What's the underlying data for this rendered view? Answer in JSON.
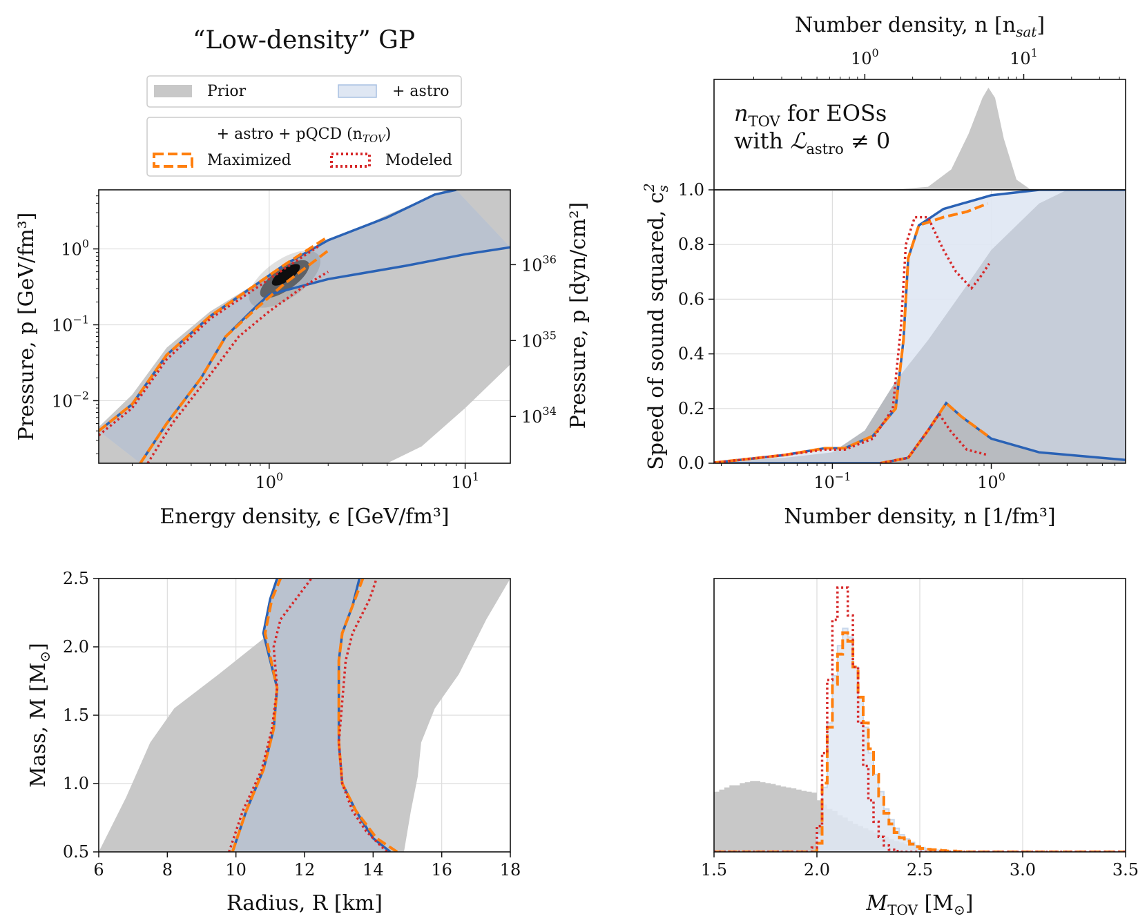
{
  "figure": {
    "title": "“Low-density” GP",
    "legend": {
      "prior": "Prior",
      "astro": "+ astro",
      "pqcd_header": "+ astro + pQCD (n",
      "pqcd_sub": "TOV",
      "pqcd_close": ")",
      "maximized": "Maximized",
      "modeled": "Modeled"
    },
    "inset_text": {
      "line1_main": "n",
      "line1_sub": "TOV",
      "line1_rest": " for EOSs",
      "line2_pre": "with ",
      "line2_main": "ℒ",
      "line2_sub": "astro",
      "line2_rest": " ≠ 0"
    }
  },
  "colors": {
    "prior": "#c8c8c8",
    "astro_fill": "#dfe7f3",
    "overlap": "#b5bec9",
    "astro_line": "#2a62b5",
    "maximized": "#ff7f0e",
    "modeled": "#d62728"
  },
  "chart_data": [
    {
      "id": "eos",
      "type": "area",
      "xlabel": "Energy density, ϵ [GeV/fm³]",
      "ylabel": "Pressure, p [GeV/fm³]",
      "ylabel_right": "Pressure, p [dyn/cm²]",
      "x_scale": "log",
      "y_scale": "log",
      "xlim": [
        0.135,
        17
      ],
      "ylim": [
        0.0015,
        6
      ],
      "x_ticks": [
        {
          "v": 1,
          "b": "10",
          "e": "0"
        },
        {
          "v": 10,
          "b": "10",
          "e": "1"
        }
      ],
      "y_ticks": [
        {
          "v": 0.01,
          "b": "10",
          "e": "−2"
        },
        {
          "v": 0.1,
          "b": "10",
          "e": "−1"
        },
        {
          "v": 1,
          "b": "10",
          "e": "0"
        }
      ],
      "y2_ticks": [
        {
          "v": 0.0062,
          "b": "10",
          "e": "34"
        },
        {
          "v": 0.062,
          "b": "10",
          "e": "35"
        },
        {
          "v": 0.62,
          "b": "10",
          "e": "36"
        },
        {
          "v": 6.2,
          "b": "10",
          "e": "37"
        }
      ],
      "prior_upper": [
        [
          0.135,
          0.0045
        ],
        [
          0.2,
          0.012
        ],
        [
          0.3,
          0.05
        ],
        [
          0.5,
          0.15
        ],
        [
          1,
          0.45
        ],
        [
          2,
          1.2
        ],
        [
          4,
          2.8
        ],
        [
          8,
          6
        ],
        [
          17,
          12
        ]
      ],
      "prior_lower": [
        [
          0.135,
          0.0015
        ],
        [
          4,
          0.0015
        ],
        [
          6,
          0.0025
        ],
        [
          10,
          0.008
        ],
        [
          17,
          0.03
        ]
      ],
      "astro_upper": [
        [
          0.135,
          0.004
        ],
        [
          0.2,
          0.009
        ],
        [
          0.3,
          0.04
        ],
        [
          0.5,
          0.13
        ],
        [
          0.8,
          0.3
        ],
        [
          1.2,
          0.62
        ],
        [
          2,
          1.3
        ],
        [
          4,
          2.6
        ],
        [
          7,
          5.2
        ],
        [
          9,
          6
        ]
      ],
      "astro_lower": [
        [
          0.22,
          0.0015
        ],
        [
          0.3,
          0.005
        ],
        [
          0.45,
          0.02
        ],
        [
          0.6,
          0.07
        ],
        [
          0.85,
          0.17
        ],
        [
          1,
          0.25
        ],
        [
          2,
          0.4
        ],
        [
          5,
          0.6
        ],
        [
          10,
          0.85
        ],
        [
          17,
          1.05
        ]
      ],
      "max_upper": [
        [
          0.135,
          0.004
        ],
        [
          0.2,
          0.009
        ],
        [
          0.3,
          0.04
        ],
        [
          0.5,
          0.13
        ],
        [
          0.8,
          0.3
        ],
        [
          1.2,
          0.62
        ],
        [
          2,
          1.45
        ]
      ],
      "max_lower": [
        [
          0.22,
          0.0015
        ],
        [
          0.3,
          0.005
        ],
        [
          0.45,
          0.02
        ],
        [
          0.6,
          0.07
        ],
        [
          0.85,
          0.16
        ],
        [
          1.2,
          0.35
        ],
        [
          2,
          0.95
        ]
      ],
      "mod_upper": [
        [
          0.135,
          0.0035
        ],
        [
          0.2,
          0.008
        ],
        [
          0.3,
          0.035
        ],
        [
          0.5,
          0.12
        ],
        [
          0.8,
          0.27
        ],
        [
          1.2,
          0.55
        ],
        [
          1.8,
          1.1
        ]
      ],
      "mod_lower": [
        [
          0.24,
          0.0015
        ],
        [
          0.32,
          0.005
        ],
        [
          0.5,
          0.022
        ],
        [
          0.7,
          0.07
        ],
        [
          1,
          0.15
        ],
        [
          1.5,
          0.32
        ],
        [
          2,
          0.5
        ]
      ],
      "cloud_center": [
        1.2,
        0.4
      ]
    },
    {
      "id": "cs2",
      "type": "area",
      "xlabel": "Number density, n [1/fm³]",
      "ylabel": "Speed of sound squared, c",
      "ylabel_sub": "s",
      "ylabel_sup": "2",
      "top_xlabel": "Number density, n [n",
      "top_xlabel_sub": "sat",
      "top_xlabel_close": "]",
      "x_scale": "log",
      "xlim": [
        0.018,
        7
      ],
      "ylim": [
        0,
        1
      ],
      "x_ticks": [
        {
          "v": 0.1,
          "b": "10",
          "e": "−1"
        },
        {
          "v": 1,
          "b": "10",
          "e": "0"
        }
      ],
      "y_ticks": [
        0.0,
        0.2,
        0.4,
        0.6,
        0.8,
        1.0
      ],
      "top_ticks": [
        {
          "v": 0.16,
          "b": "10",
          "e": "0"
        },
        {
          "v": 1.6,
          "b": "10",
          "e": "1"
        }
      ],
      "prior_upper": [
        [
          0.018,
          0.005
        ],
        [
          0.05,
          0.02
        ],
        [
          0.1,
          0.04
        ],
        [
          0.16,
          0.12
        ],
        [
          0.25,
          0.3
        ],
        [
          0.4,
          0.45
        ],
        [
          0.7,
          0.65
        ],
        [
          1,
          0.78
        ],
        [
          2,
          0.95
        ],
        [
          3,
          1
        ],
        [
          7,
          1
        ]
      ],
      "astro_upper": [
        [
          0.018,
          0.002
        ],
        [
          0.05,
          0.03
        ],
        [
          0.09,
          0.055
        ],
        [
          0.12,
          0.055
        ],
        [
          0.18,
          0.1
        ],
        [
          0.25,
          0.2
        ],
        [
          0.28,
          0.45
        ],
        [
          0.3,
          0.75
        ],
        [
          0.35,
          0.87
        ],
        [
          0.5,
          0.93
        ],
        [
          1,
          0.98
        ],
        [
          2,
          1
        ],
        [
          7,
          1
        ]
      ],
      "astro_lower": [
        [
          0.018,
          0
        ],
        [
          0.2,
          0
        ],
        [
          0.3,
          0.02
        ],
        [
          0.4,
          0.12
        ],
        [
          0.52,
          0.22
        ],
        [
          0.65,
          0.17
        ],
        [
          1,
          0.09
        ],
        [
          2,
          0.04
        ],
        [
          7,
          0.012
        ]
      ],
      "max_upper": [
        [
          0.018,
          0.002
        ],
        [
          0.05,
          0.03
        ],
        [
          0.09,
          0.055
        ],
        [
          0.12,
          0.055
        ],
        [
          0.18,
          0.1
        ],
        [
          0.25,
          0.2
        ],
        [
          0.28,
          0.45
        ],
        [
          0.3,
          0.75
        ],
        [
          0.35,
          0.87
        ],
        [
          0.5,
          0.9
        ],
        [
          0.7,
          0.92
        ],
        [
          0.95,
          0.95
        ]
      ],
      "max_lower": [
        [
          0.2,
          0
        ],
        [
          0.3,
          0.02
        ],
        [
          0.4,
          0.12
        ],
        [
          0.52,
          0.22
        ],
        [
          0.65,
          0.17
        ],
        [
          0.95,
          0.1
        ]
      ],
      "mod_upper": [
        [
          0.018,
          0.002
        ],
        [
          0.05,
          0.03
        ],
        [
          0.09,
          0.05
        ],
        [
          0.12,
          0.05
        ],
        [
          0.18,
          0.09
        ],
        [
          0.24,
          0.2
        ],
        [
          0.27,
          0.5
        ],
        [
          0.29,
          0.8
        ],
        [
          0.33,
          0.9
        ],
        [
          0.4,
          0.9
        ],
        [
          0.5,
          0.78
        ],
        [
          0.6,
          0.7
        ],
        [
          0.75,
          0.64
        ],
        [
          0.85,
          0.68
        ],
        [
          0.97,
          0.73
        ]
      ],
      "mod_lower": [
        [
          0.2,
          0
        ],
        [
          0.3,
          0.02
        ],
        [
          0.4,
          0.12
        ],
        [
          0.47,
          0.18
        ],
        [
          0.55,
          0.12
        ],
        [
          0.7,
          0.05
        ],
        [
          0.95,
          0.03
        ]
      ],
      "inset_hist": [
        [
          0.5,
          0
        ],
        [
          1.5,
          0.002
        ],
        [
          2.5,
          0.03
        ],
        [
          3.5,
          0.2
        ],
        [
          4.5,
          0.55
        ],
        [
          5.5,
          0.9
        ],
        [
          6,
          1
        ],
        [
          6.6,
          0.9
        ],
        [
          7.5,
          0.5
        ],
        [
          9,
          0.1
        ],
        [
          11,
          0.005
        ],
        [
          13,
          0
        ]
      ]
    },
    {
      "id": "mr",
      "type": "area",
      "xlabel": "Radius, R [km]",
      "ylabel": "Mass, M [M",
      "ylabel_sub": "⊙",
      "ylabel_close": "]",
      "xlim": [
        6,
        18
      ],
      "ylim": [
        0.5,
        2.5
      ],
      "x_ticks": [
        6,
        8,
        10,
        12,
        14,
        16,
        18
      ],
      "y_ticks": [
        0.5,
        1.0,
        1.5,
        2.0,
        2.5
      ],
      "prior_left": [
        [
          6,
          0.5
        ],
        [
          6.8,
          0.9
        ],
        [
          7.5,
          1.3
        ],
        [
          8.2,
          1.55
        ],
        [
          9.5,
          1.8
        ],
        [
          11,
          2.1
        ],
        [
          12.5,
          2.5
        ]
      ],
      "prior_right": [
        [
          14.9,
          0.5
        ],
        [
          15.1,
          0.8
        ],
        [
          15.3,
          1.05
        ],
        [
          15.4,
          1.3
        ],
        [
          15.8,
          1.55
        ],
        [
          16.5,
          1.8
        ],
        [
          17.3,
          2.2
        ],
        [
          18,
          2.5
        ]
      ],
      "astro_left": [
        [
          9.9,
          0.5
        ],
        [
          10.3,
          0.8
        ],
        [
          10.8,
          1.1
        ],
        [
          11.1,
          1.4
        ],
        [
          11.2,
          1.7
        ],
        [
          10.8,
          2.1
        ],
        [
          11,
          2.35
        ],
        [
          11.2,
          2.5
        ]
      ],
      "astro_right": [
        [
          14.5,
          0.5
        ],
        [
          14,
          0.6
        ],
        [
          13.5,
          0.8
        ],
        [
          13.1,
          1.0
        ],
        [
          13.0,
          1.3
        ],
        [
          13.0,
          1.6
        ],
        [
          13.0,
          1.9
        ],
        [
          13.1,
          2.1
        ],
        [
          13.4,
          2.3
        ],
        [
          13.6,
          2.5
        ]
      ],
      "max_left": [
        [
          9.9,
          0.5
        ],
        [
          10.3,
          0.8
        ],
        [
          10.8,
          1.1
        ],
        [
          11.1,
          1.4
        ],
        [
          11.2,
          1.7
        ],
        [
          10.85,
          2.1
        ],
        [
          11.05,
          2.35
        ],
        [
          11.3,
          2.5
        ]
      ],
      "max_right": [
        [
          14.7,
          0.5
        ],
        [
          14.1,
          0.6
        ],
        [
          13.5,
          0.8
        ],
        [
          13.1,
          1.0
        ],
        [
          13.0,
          1.3
        ],
        [
          13.0,
          1.6
        ],
        [
          13.0,
          1.9
        ],
        [
          13.1,
          2.1
        ],
        [
          13.4,
          2.3
        ],
        [
          13.7,
          2.5
        ]
      ],
      "mod_left": [
        [
          9.8,
          0.5
        ],
        [
          10.2,
          0.8
        ],
        [
          10.75,
          1.1
        ],
        [
          11.05,
          1.4
        ],
        [
          11.2,
          1.7
        ],
        [
          11.1,
          2.0
        ],
        [
          11.3,
          2.2
        ],
        [
          11.9,
          2.4
        ],
        [
          12.2,
          2.5
        ]
      ],
      "mod_right": [
        [
          14.4,
          0.5
        ],
        [
          13.8,
          0.65
        ],
        [
          13.4,
          0.8
        ],
        [
          13.1,
          1.0
        ],
        [
          13.0,
          1.3
        ],
        [
          13.1,
          1.6
        ],
        [
          13.2,
          1.9
        ],
        [
          13.4,
          2.1
        ],
        [
          13.9,
          2.35
        ],
        [
          14.1,
          2.5
        ]
      ]
    },
    {
      "id": "mtov",
      "type": "bar",
      "xlabel": "M",
      "xlabel_sub": "TOV",
      "xlabel_close": " [M",
      "xlabel_sub2": "⊙",
      "xlabel_close2": "]",
      "xlim": [
        1.5,
        3.5
      ],
      "x_ticks": [
        1.5,
        2.0,
        2.5,
        3.0,
        3.5
      ],
      "bin_start": 1.5,
      "bin_width": 0.025,
      "ymax": 6.2,
      "prior": [
        1.4,
        1.45,
        1.5,
        1.55,
        1.55,
        1.6,
        1.62,
        1.65,
        1.65,
        1.62,
        1.6,
        1.58,
        1.55,
        1.52,
        1.5,
        1.48,
        1.45,
        1.42,
        1.4,
        1.38,
        1.2,
        1.1,
        1.0,
        0.95,
        0.85,
        0.8,
        0.72,
        0.65,
        0.6,
        0.55,
        0.5,
        0.45,
        0.4,
        0.35,
        0.3,
        0.25,
        0.22,
        0.18,
        0.15,
        0.12,
        0.1,
        0.08,
        0.06,
        0.05,
        0.04,
        0.03,
        0.02,
        0.02,
        0.01,
        0.01,
        0.01,
        0,
        0,
        0,
        0,
        0,
        0,
        0,
        0,
        0,
        0,
        0,
        0,
        0,
        0,
        0,
        0,
        0,
        0,
        0,
        0,
        0,
        0,
        0,
        0,
        0,
        0,
        0,
        0,
        0
      ],
      "astro": [
        0,
        0,
        0,
        0,
        0,
        0,
        0,
        0,
        0,
        0,
        0,
        0,
        0,
        0,
        0,
        0,
        0,
        0,
        0,
        0,
        0.4,
        1.5,
        3.0,
        4.1,
        4.8,
        5.2,
        5.0,
        4.3,
        3.6,
        2.9,
        2.3,
        1.8,
        1.4,
        1.0,
        0.75,
        0.55,
        0.4,
        0.3,
        0.22,
        0.15,
        0.1,
        0.07,
        0.05,
        0.04,
        0.03,
        0.02,
        0.01,
        0.01,
        0,
        0,
        0,
        0,
        0,
        0,
        0,
        0,
        0,
        0,
        0,
        0,
        0,
        0,
        0,
        0,
        0,
        0,
        0,
        0,
        0,
        0,
        0,
        0,
        0,
        0,
        0,
        0,
        0,
        0,
        0,
        0
      ],
      "maximized": [
        0,
        0,
        0,
        0,
        0,
        0,
        0,
        0,
        0,
        0,
        0,
        0,
        0,
        0,
        0,
        0,
        0,
        0,
        0,
        0,
        0.2,
        1.6,
        2.9,
        3.9,
        4.6,
        5.1,
        4.9,
        4.3,
        3.6,
        3.0,
        2.4,
        1.8,
        1.3,
        0.9,
        0.65,
        0.45,
        0.33,
        0.25,
        0.18,
        0.12,
        0.08,
        0.06,
        0.05,
        0.04,
        0.03,
        0.02,
        0.02,
        0.01,
        0.01,
        0,
        0,
        0,
        0,
        0,
        0,
        0,
        0,
        0,
        0,
        0,
        0,
        0,
        0,
        0,
        0,
        0,
        0,
        0,
        0,
        0,
        0,
        0,
        0,
        0,
        0,
        0,
        0,
        0,
        0,
        0
      ],
      "modeled": [
        0,
        0,
        0,
        0,
        0,
        0,
        0,
        0,
        0,
        0,
        0,
        0,
        0,
        0,
        0,
        0,
        0,
        0,
        0,
        0.1,
        0.6,
        2.3,
        4.0,
        5.4,
        6.15,
        6.15,
        5.5,
        4.3,
        3.0,
        2.0,
        1.2,
        0.7,
        0.35,
        0.15,
        0.05,
        0.02,
        0,
        0,
        0,
        0,
        0,
        0,
        0,
        0,
        0,
        0,
        0,
        0,
        0,
        0,
        0,
        0,
        0,
        0,
        0,
        0,
        0,
        0,
        0,
        0,
        0,
        0,
        0,
        0,
        0,
        0,
        0,
        0,
        0,
        0,
        0,
        0,
        0,
        0,
        0,
        0,
        0,
        0,
        0,
        0
      ]
    }
  ]
}
